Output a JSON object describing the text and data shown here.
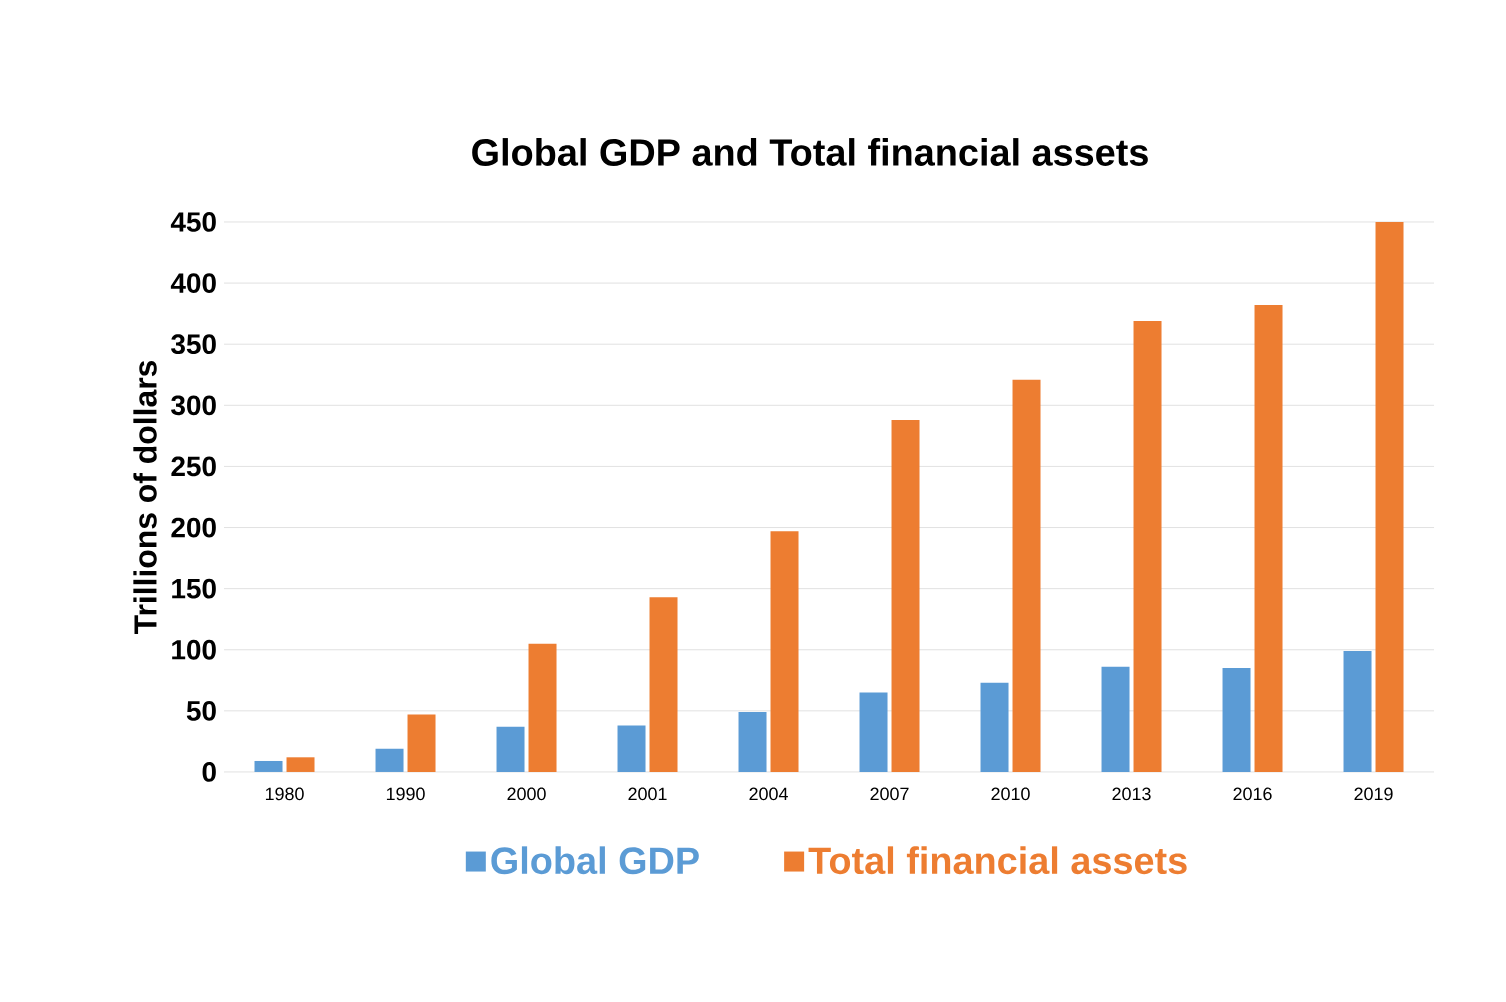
{
  "chart_data": {
    "type": "bar",
    "title": "Global GDP and Total financial assets",
    "ylabel": "Trillions of dollars",
    "categories": [
      "1980",
      "1990",
      "2000",
      "2001",
      "2004",
      "2007",
      "2010",
      "2013",
      "2016",
      "2019"
    ],
    "series": [
      {
        "name": "Global GDP",
        "color": "#5b9bd5",
        "values": [
          9,
          19,
          37,
          38,
          49,
          65,
          73,
          86,
          85,
          99
        ]
      },
      {
        "name": "Total financial assets",
        "color": "#ed7d31",
        "values": [
          12,
          47,
          105,
          143,
          197,
          288,
          321,
          369,
          382,
          450
        ]
      }
    ],
    "ylim": [
      0,
      450
    ],
    "yticks": [
      0,
      50,
      100,
      150,
      200,
      250,
      300,
      350,
      400,
      450
    ],
    "grid": "y",
    "legend": "bottom"
  }
}
